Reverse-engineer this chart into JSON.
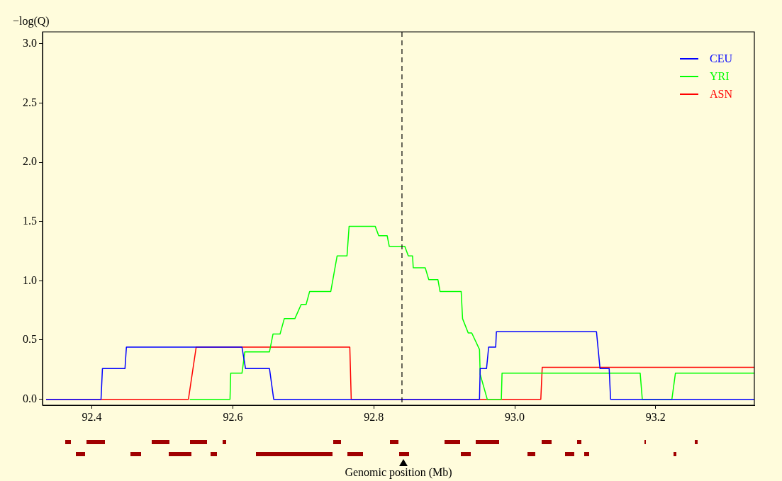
{
  "chart_data": {
    "type": "line",
    "xlabel": "Genomic position (Mb)",
    "ylabel": "−log(Q)",
    "xlim": [
      92.33,
      93.34
    ],
    "ylim": [
      -0.05,
      3.1
    ],
    "xticks": [
      92.4,
      92.6,
      92.8,
      {
        "value": 93.0,
        "label": "93.0"
      },
      93.2
    ],
    "yticks": [
      {
        "value": 0,
        "label": "0.0"
      },
      0.5,
      {
        "value": 1,
        "label": "1.0"
      },
      1.5,
      {
        "value": 2,
        "label": "2.0"
      },
      2.5,
      {
        "value": 3,
        "label": "3.0"
      }
    ],
    "grid": false,
    "legend": "top right",
    "line_style": "solid",
    "ref_lines": [
      {
        "axis": "x",
        "value": 92.84,
        "color": "#000000",
        "line_style": "dashed"
      }
    ],
    "series": [
      {
        "name": "CEU",
        "color": "#0000ff",
        "x": [
          92.335,
          92.413,
          92.415,
          92.447,
          92.449,
          92.613,
          92.618,
          92.652,
          92.658,
          92.95,
          92.951,
          92.96,
          92.963,
          92.973,
          92.974,
          93.116,
          93.121,
          93.134,
          93.136,
          93.34
        ],
        "values": [
          0,
          0,
          0.26,
          0.26,
          0.44,
          0.44,
          0.26,
          0.26,
          0,
          0,
          0.26,
          0.26,
          0.44,
          0.44,
          0.57,
          0.57,
          0.26,
          0.26,
          0,
          0
        ]
      },
      {
        "name": "YRI",
        "color": "#00ff00",
        "x": [
          92.539,
          92.596,
          92.597,
          92.613,
          92.617,
          92.652,
          92.657,
          92.667,
          92.673,
          92.688,
          92.697,
          92.704,
          92.709,
          92.739,
          92.742,
          92.748,
          92.762,
          92.765,
          92.802,
          92.807,
          92.819,
          92.822,
          92.844,
          92.849,
          92.855,
          92.856,
          92.873,
          92.878,
          92.891,
          92.894,
          92.924,
          92.926,
          92.934,
          92.939,
          92.95,
          92.951,
          92.961,
          92.981,
          92.982,
          93.178,
          93.181,
          93.223,
          93.228,
          93.34
        ],
        "values": [
          0,
          0,
          0.22,
          0.22,
          0.4,
          0.4,
          0.55,
          0.55,
          0.68,
          0.68,
          0.8,
          0.8,
          0.91,
          0.91,
          1.01,
          1.21,
          1.21,
          1.46,
          1.46,
          1.38,
          1.38,
          1.29,
          1.29,
          1.21,
          1.21,
          1.11,
          1.11,
          1.01,
          1.01,
          0.91,
          0.91,
          0.68,
          0.56,
          0.56,
          0.42,
          0.21,
          0,
          0,
          0.22,
          0.22,
          0,
          0,
          0.22,
          0.22
        ]
      },
      {
        "name": "ASN",
        "color": "#ff0000",
        "x": [
          92.335,
          92.537,
          92.548,
          92.766,
          92.768,
          93.037,
          93.039,
          93.34
        ],
        "values": [
          0,
          0,
          0.44,
          0.44,
          0,
          0,
          0.27,
          0.27
        ]
      }
    ]
  }
}
